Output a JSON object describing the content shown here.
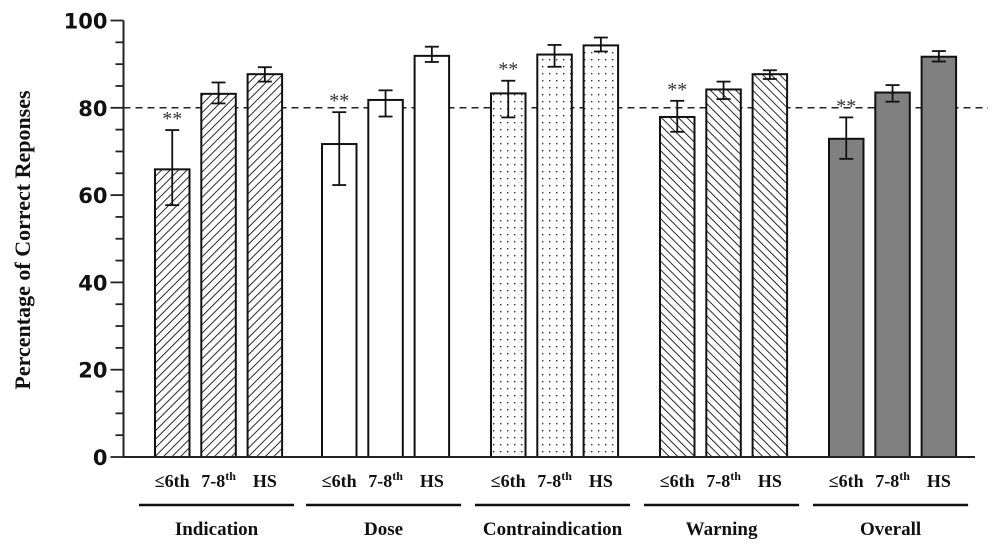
{
  "chart_data": {
    "type": "bar",
    "title": "",
    "xlabel": "",
    "ylabel": "Percentage of Correct Reponses",
    "ylim": [
      0,
      100
    ],
    "yticks": [
      "0",
      "20",
      "40",
      "60",
      "80",
      "100"
    ],
    "minor_tick_step": 5,
    "reference_line": 80,
    "grid": false,
    "categories": [
      {
        "label": "≤6th",
        "sup": ""
      },
      {
        "label": "7-8",
        "sup": "th"
      },
      {
        "label": "HS",
        "sup": ""
      }
    ],
    "groups": [
      {
        "name": "Indication",
        "pattern": "hatch-forward",
        "fill": "#ffffff",
        "values": [
          65.9,
          83.2,
          87.7
        ],
        "error_high": [
          74.9,
          85.8,
          89.3
        ],
        "error_low": [
          57.7,
          81.0,
          86.0
        ],
        "annotations": [
          "**",
          "",
          ""
        ]
      },
      {
        "name": "Dose",
        "pattern": "none",
        "fill": "#ffffff",
        "values": [
          71.7,
          81.8,
          91.9
        ],
        "error_high": [
          79.0,
          84.0,
          94.0
        ],
        "error_low": [
          62.3,
          78.0,
          90.5
        ],
        "annotations": [
          "**",
          "",
          ""
        ]
      },
      {
        "name": "Contraindication",
        "pattern": "dots",
        "fill": "#ffffff",
        "values": [
          83.3,
          92.2,
          94.3
        ],
        "error_high": [
          86.2,
          94.4,
          96.1
        ],
        "error_low": [
          77.8,
          89.4,
          92.9
        ],
        "annotations": [
          "**",
          "",
          ""
        ]
      },
      {
        "name": "Warning",
        "pattern": "hatch-back",
        "fill": "#ffffff",
        "values": [
          77.9,
          84.2,
          87.7
        ],
        "error_high": [
          81.6,
          86.0,
          88.6
        ],
        "error_low": [
          74.5,
          82.0,
          86.6
        ],
        "annotations": [
          "**",
          "",
          ""
        ]
      },
      {
        "name": "Overall",
        "pattern": "solid",
        "fill": "#808080",
        "values": [
          72.9,
          83.5,
          91.7
        ],
        "error_high": [
          77.8,
          85.2,
          93.0
        ],
        "error_low": [
          68.3,
          81.4,
          90.6
        ],
        "annotations": [
          "**",
          "",
          ""
        ]
      }
    ]
  }
}
